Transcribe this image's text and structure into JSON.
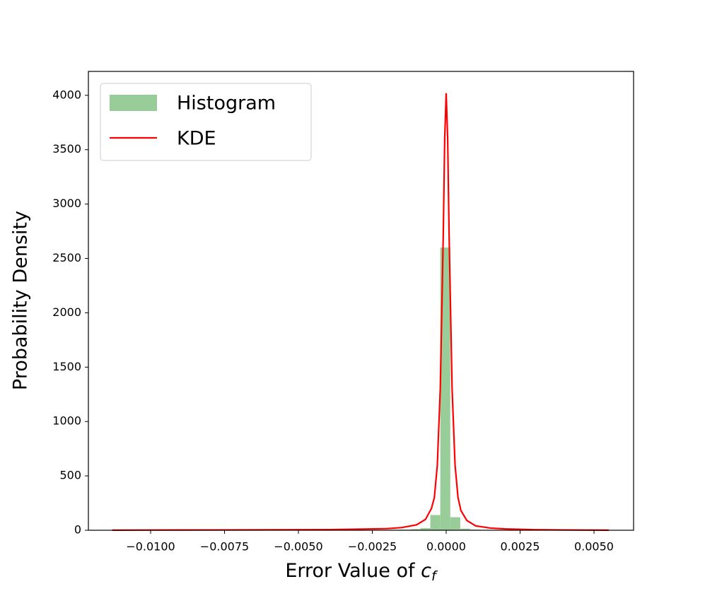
{
  "chart_data": {
    "type": "histogram",
    "xlabel": {
      "text": "Error Value of",
      "symbol": "c",
      "subscript": "f"
    },
    "ylabel": "Probability Density",
    "name": "Histogram",
    "color": "#98cc98",
    "bins": [
      -0.01132,
      -0.010983,
      -0.010646,
      -0.010309,
      -0.009972,
      -0.009635,
      -0.009298,
      -0.008961,
      -0.008624,
      -0.008287,
      -0.00795,
      -0.007613,
      -0.007276,
      -0.006939,
      -0.006602,
      -0.006265,
      -0.005928,
      -0.005591,
      -0.005254,
      -0.004917,
      -0.00458,
      -0.004243,
      -0.003906,
      -0.003569,
      -0.003232,
      -0.002895,
      -0.002558,
      -0.002221,
      -0.001884,
      -0.001547,
      -0.00121,
      -0.000873,
      -0.000536,
      -0.000199,
      0.000138,
      0.000475,
      0.000812,
      0.001149,
      0.001486,
      0.001823,
      0.00216,
      0.002497,
      0.002834,
      0.003171,
      0.003508,
      0.003845,
      0.004182,
      0.004519,
      0.004856,
      0.005193,
      0.00553
    ],
    "values": [
      1,
      0,
      0,
      1,
      0,
      1,
      0,
      1,
      1,
      0,
      1,
      1,
      1,
      1,
      1,
      1,
      1,
      1,
      1,
      2,
      1,
      2,
      2,
      2,
      2,
      3,
      3,
      3,
      4,
      5,
      10,
      20,
      140,
      2600,
      120,
      15,
      6,
      3,
      2,
      2,
      1,
      1,
      1,
      1,
      1,
      0,
      1,
      0,
      0,
      1
    ],
    "kde": {
      "name": "KDE",
      "color": "#ff0000",
      "x": [
        -0.0113,
        -0.01,
        -0.008,
        -0.006,
        -0.004,
        -0.003,
        -0.002,
        -0.0015,
        -0.001,
        -0.0007,
        -0.0005,
        -0.0004,
        -0.0003,
        -0.0002,
        -0.0001,
        -5e-05,
        0,
        5e-05,
        0.0001,
        0.0002,
        0.0003,
        0.0004,
        0.0005,
        0.0007,
        0.001,
        0.0015,
        0.002,
        0.003,
        0.004,
        0.0055
      ],
      "values": [
        1,
        2,
        3,
        4,
        6,
        10,
        15,
        25,
        50,
        100,
        200,
        300,
        600,
        1300,
        2700,
        3600,
        4020,
        3600,
        2700,
        1300,
        600,
        300,
        180,
        90,
        40,
        20,
        12,
        5,
        3,
        1
      ]
    },
    "xlim": [
      -0.012105,
      0.00634
    ],
    "ylim": [
      0,
      4220
    ],
    "xticks": [
      {
        "value": -0.01,
        "label": "−0.0100"
      },
      {
        "value": -0.0075,
        "label": "−0.0075"
      },
      {
        "value": -0.005,
        "label": "−0.0050"
      },
      {
        "value": -0.0025,
        "label": "−0.0025"
      },
      {
        "value": 0,
        "label": "0.0000"
      },
      {
        "value": 0.0025,
        "label": "0.0025"
      },
      {
        "value": 0.005,
        "label": "0.0050"
      }
    ],
    "yticks": [
      0,
      500,
      1000,
      1500,
      2000,
      2500,
      3000,
      3500,
      4000
    ],
    "legend": "upper left"
  }
}
